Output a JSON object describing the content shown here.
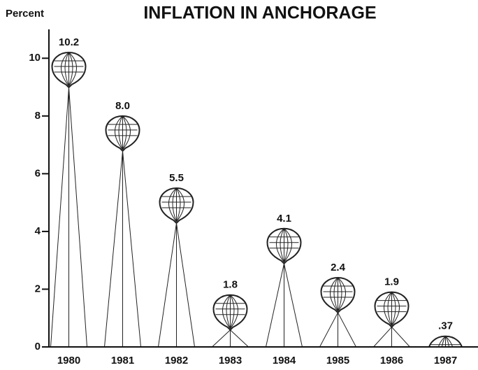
{
  "chart_data": {
    "type": "balloon",
    "title": "INFLATION IN ANCHORAGE",
    "y_label": "Percent",
    "categories": [
      "1980",
      "1981",
      "1982",
      "1983",
      "1984",
      "1985",
      "1986",
      "1987"
    ],
    "values": [
      10.2,
      8.0,
      5.5,
      1.8,
      4.1,
      2.4,
      1.9,
      0.37
    ],
    "value_labels": [
      "10.2",
      "8.0",
      "5.5",
      "1.8",
      "4.1",
      "2.4",
      "1.9",
      ".37"
    ],
    "color": "#222222",
    "ylim": [
      0,
      11
    ],
    "yticks": [
      0,
      2,
      4,
      6,
      8,
      10
    ],
    "grid": false
  }
}
